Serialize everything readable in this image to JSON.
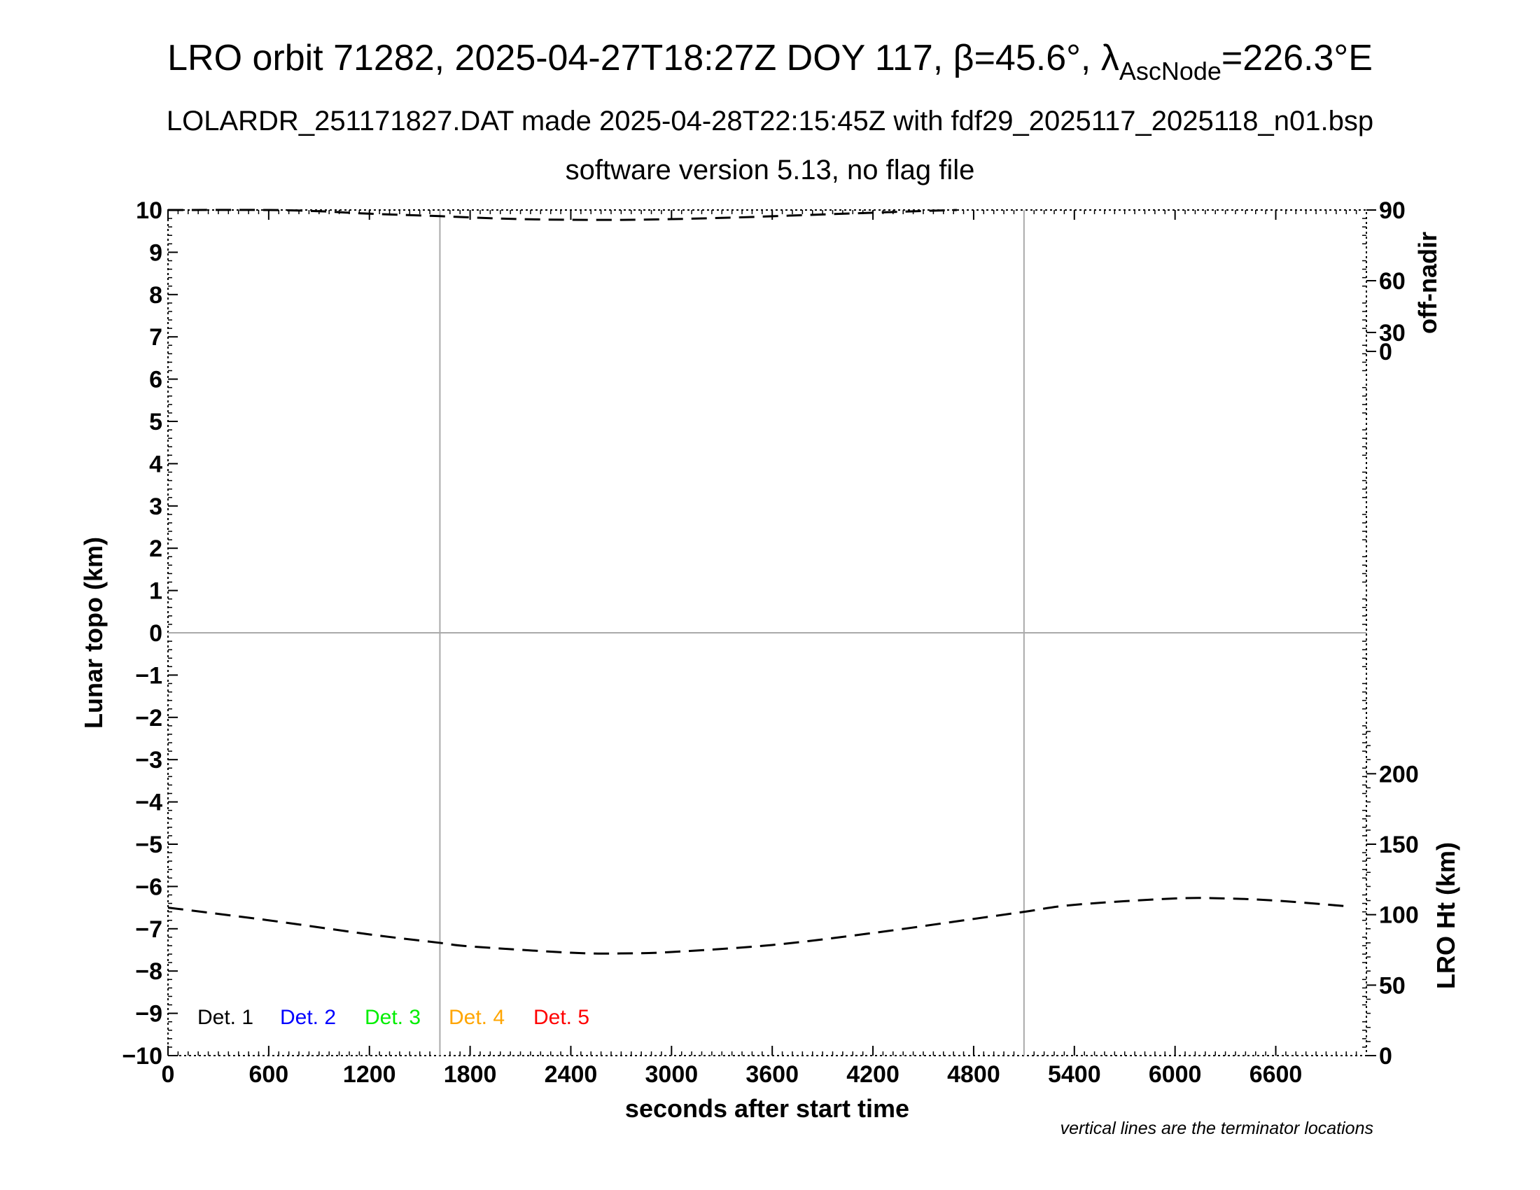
{
  "chart_data": {
    "type": "line",
    "title_parts": {
      "main": "LRO orbit 71282, 2025-04-27T18:27Z DOY 117, ",
      "beta_sym": "β",
      "beta_val": "=45.6°, ",
      "lambda_sym": "λ",
      "lambda_sub": "AscNode",
      "lambda_val": "=226.3°E"
    },
    "subtitle1": "LOLARDR_251171827.DAT made 2025-04-28T22:15:45Z with fdf29_2025117_2025118_n01.bsp",
    "subtitle2": "software version 5.13, no flag file",
    "xlabel": "seconds after start time",
    "ylabel_left": "Lunar topo (km)",
    "ylabel_right_top": "off-nadir",
    "ylabel_right_bottom": "LRO Ht (km)",
    "note": "vertical lines are the terminator locations",
    "xlim": [
      0,
      7140
    ],
    "ylim": [
      -10,
      10
    ],
    "x_ticks": [
      "0",
      "600",
      "1200",
      "1800",
      "2400",
      "3000",
      "3600",
      "4200",
      "4800",
      "5400",
      "6000",
      "6600"
    ],
    "y_ticks": [
      "−10",
      "−9",
      "−8",
      "−7",
      "−6",
      "−5",
      "−4",
      "−3",
      "−2",
      "−1",
      "0",
      "1",
      "2",
      "3",
      "4",
      "5",
      "6",
      "7",
      "8",
      "9",
      "10"
    ],
    "offnadir_ticks": [
      "0",
      "30",
      "60",
      "90"
    ],
    "height_ticks": [
      "0",
      "50",
      "100",
      "150",
      "200"
    ],
    "terminators_s": [
      1620,
      5100
    ],
    "legend": [
      {
        "label": "Det. 1",
        "color": "#000000"
      },
      {
        "label": "Det. 2",
        "color": "#0000ff"
      },
      {
        "label": "Det. 3",
        "color": "#00ee00"
      },
      {
        "label": "Det. 4",
        "color": "#ffa500"
      },
      {
        "label": "Det. 5",
        "color": "#ff0000"
      }
    ],
    "series": [
      {
        "axis": "LRO Ht (km)",
        "style": "dashed",
        "x": [
          0,
          600,
          1200,
          1620,
          1800,
          2400,
          2700,
          3000,
          3600,
          4200,
          4800,
          5100,
          5400,
          6000,
          6300,
          6600,
          7020
        ],
        "y": [
          105,
          96,
          86,
          80,
          77.5,
          73,
          72.5,
          73.5,
          78.5,
          87,
          97,
          102,
          107,
          111.5,
          111.5,
          110,
          106
        ]
      },
      {
        "axis": "off-nadir",
        "style": "dashed",
        "x": [
          0,
          600,
          900,
          1200,
          1620,
          2100,
          2700,
          3300,
          3900,
          4500,
          4700
        ],
        "y": [
          90,
          90,
          89.5,
          88.5,
          87.5,
          86.3,
          86,
          86.8,
          88.2,
          89.6,
          90
        ]
      }
    ]
  }
}
